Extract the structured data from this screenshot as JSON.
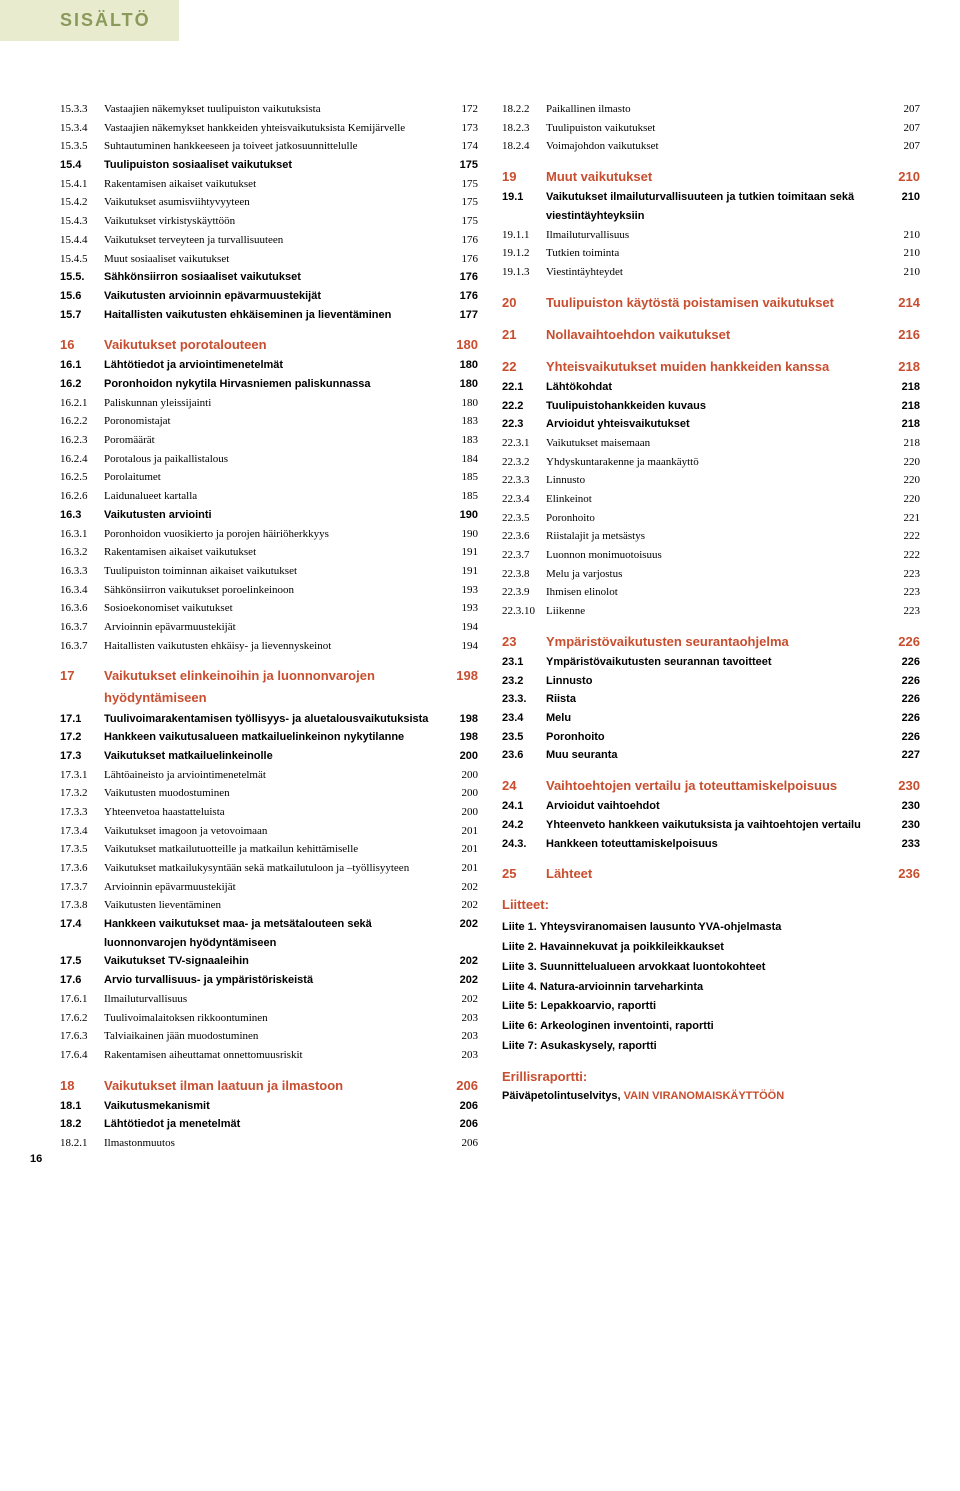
{
  "header": "SISÄLTÖ",
  "pageNumber": "16",
  "colors": {
    "headerBg": "#e8ebce",
    "headerText": "#8a9a5b",
    "sectionHead": "#c84e2f",
    "bodyText": "#000000",
    "background": "#ffffff"
  },
  "leftColumn": [
    {
      "num": "15.3.3",
      "label": "Vastaajien näkemykset tuulipuiston vaikutuksista",
      "page": "172",
      "style": "normal"
    },
    {
      "num": "15.3.4",
      "label": "Vastaajien näkemykset hankkeiden yhteisvaikutuksista Kemijärvelle",
      "page": "173",
      "style": "normal"
    },
    {
      "num": "15.3.5",
      "label": "Suhtautuminen hankkeeseen ja toiveet jatkosuunnittelulle",
      "page": "174",
      "style": "normal"
    },
    {
      "num": "15.4",
      "label": "Tuulipuiston sosiaaliset vaikutukset",
      "page": "175",
      "style": "bold"
    },
    {
      "num": "15.4.1",
      "label": "Rakentamisen aikaiset vaikutukset",
      "page": "175",
      "style": "normal"
    },
    {
      "num": "15.4.2",
      "label": "Vaikutukset asumisviihtyvyyteen",
      "page": "175",
      "style": "normal"
    },
    {
      "num": "15.4.3",
      "label": "Vaikutukset virkistyskäyttöön",
      "page": "175",
      "style": "normal"
    },
    {
      "num": "15.4.4",
      "label": "Vaikutukset terveyteen ja turvallisuuteen",
      "page": "176",
      "style": "normal"
    },
    {
      "num": "15.4.5",
      "label": "Muut sosiaaliset vaikutukset",
      "page": "176",
      "style": "normal"
    },
    {
      "num": "15.5.",
      "label": "Sähkönsiirron sosiaaliset vaikutukset",
      "page": "176",
      "style": "bold"
    },
    {
      "num": "15.6",
      "label": "Vaikutusten arvioinnin epävarmuustekijät",
      "page": "176",
      "style": "bold"
    },
    {
      "num": "15.7",
      "label": "Haitallisten vaikutusten ehkäiseminen ja lieventäminen",
      "page": "177",
      "style": "bold"
    },
    {
      "style": "spacer"
    },
    {
      "num": "16",
      "label": "Vaikutukset porotalouteen",
      "page": "180",
      "style": "section"
    },
    {
      "num": "16.1",
      "label": "Lähtötiedot ja arviointimenetelmät",
      "page": "180",
      "style": "bold"
    },
    {
      "num": "16.2",
      "label": "Poronhoidon nykytila Hirvasniemen paliskunnassa",
      "page": "180",
      "style": "bold"
    },
    {
      "num": "16.2.1",
      "label": "Paliskunnan yleissijainti",
      "page": "180",
      "style": "normal"
    },
    {
      "num": "16.2.2",
      "label": "Poronomistajat",
      "page": "183",
      "style": "normal"
    },
    {
      "num": "16.2.3",
      "label": "Poromäärät",
      "page": "183",
      "style": "normal"
    },
    {
      "num": "16.2.4",
      "label": "Porotalous ja paikallistalous",
      "page": "184",
      "style": "normal"
    },
    {
      "num": "16.2.5",
      "label": "Porolaitumet",
      "page": "185",
      "style": "normal"
    },
    {
      "num": "16.2.6",
      "label": "Laidunalueet kartalla",
      "page": "185",
      "style": "normal"
    },
    {
      "num": "16.3",
      "label": "Vaikutusten arviointi",
      "page": "190",
      "style": "bold"
    },
    {
      "num": "16.3.1",
      "label": "Poronhoidon vuosikierto ja porojen häiriöherkkyys",
      "page": "190",
      "style": "normal"
    },
    {
      "num": "16.3.2",
      "label": "Rakentamisen aikaiset vaikutukset",
      "page": "191",
      "style": "normal"
    },
    {
      "num": "16.3.3",
      "label": "Tuulipuiston toiminnan aikaiset vaikutukset",
      "page": "191",
      "style": "normal"
    },
    {
      "num": "16.3.4",
      "label": "Sähkönsiirron vaikutukset poroelinkeinoon",
      "page": "193",
      "style": "normal"
    },
    {
      "num": "16.3.6",
      "label": "Sosioekonomiset vaikutukset",
      "page": "193",
      "style": "normal"
    },
    {
      "num": "16.3.7",
      "label": "Arvioinnin epävarmuustekijät",
      "page": "194",
      "style": "normal"
    },
    {
      "num": "16.3.7",
      "label": "Haitallisten vaikutusten ehkäisy- ja lievennyskeinot",
      "page": "194",
      "style": "normal"
    },
    {
      "style": "spacer"
    },
    {
      "num": "17",
      "label": "Vaikutukset elinkeinoihin ja luonnonvarojen hyödyntämiseen",
      "page": "198",
      "style": "section"
    },
    {
      "num": "17.1",
      "label": "Tuulivoimarakentamisen työllisyys- ja aluetalousvaikutuksista",
      "page": "198",
      "style": "bold"
    },
    {
      "num": "17.2",
      "label": "Hankkeen vaikutusalueen matkailuelinkeinon nykytilanne",
      "page": "198",
      "style": "bold"
    },
    {
      "num": "17.3",
      "label": "Vaikutukset matkailuelinkeinolle",
      "page": "200",
      "style": "bold"
    },
    {
      "num": "17.3.1",
      "label": "Lähtöaineisto ja arviointimenetelmät",
      "page": "200",
      "style": "normal"
    },
    {
      "num": "17.3.2",
      "label": "Vaikutusten muodostuminen",
      "page": "200",
      "style": "normal"
    },
    {
      "num": "17.3.3",
      "label": "Yhteenvetoa haastatteluista",
      "page": "200",
      "style": "normal"
    },
    {
      "num": "17.3.4",
      "label": "Vaikutukset imagoon ja vetovoimaan",
      "page": "201",
      "style": "normal"
    },
    {
      "num": "17.3.5",
      "label": "Vaikutukset matkailutuotteille ja matkailun kehittämiselle",
      "page": "201",
      "style": "normal"
    },
    {
      "num": "17.3.6",
      "label": "Vaikutukset matkailukysyntään sekä matkailutuloon ja –työllisyyteen",
      "page": "201",
      "style": "normal"
    },
    {
      "num": "17.3.7",
      "label": "Arvioinnin epävarmuustekijät",
      "page": "202",
      "style": "normal"
    },
    {
      "num": "17.3.8",
      "label": "Vaikutusten lieventäminen",
      "page": "202",
      "style": "normal"
    },
    {
      "num": "17.4",
      "label": "Hankkeen vaikutukset maa- ja metsätalouteen sekä luonnonvarojen hyödyntämiseen",
      "page": "202",
      "style": "bold"
    },
    {
      "num": "17.5",
      "label": "Vaikutukset TV-signaaleihin",
      "page": "202",
      "style": "bold"
    },
    {
      "num": "17.6",
      "label": "Arvio turvallisuus- ja ympäristöriskeistä",
      "page": "202",
      "style": "bold"
    },
    {
      "num": "17.6.1",
      "label": "Ilmailuturvallisuus",
      "page": "202",
      "style": "normal"
    },
    {
      "num": "17.6.2",
      "label": "Tuulivoimalaitoksen rikkoontuminen",
      "page": "203",
      "style": "normal"
    },
    {
      "num": "17.6.3",
      "label": "Talviaikainen jään muodostuminen",
      "page": "203",
      "style": "normal"
    },
    {
      "num": "17.6.4",
      "label": "Rakentamisen aiheuttamat onnettomuusriskit",
      "page": "203",
      "style": "normal"
    },
    {
      "style": "spacer"
    },
    {
      "num": "18",
      "label": "Vaikutukset ilman laatuun ja ilmastoon",
      "page": "206",
      "style": "section"
    },
    {
      "num": "18.1",
      "label": "Vaikutusmekanismit",
      "page": "206",
      "style": "bold"
    },
    {
      "num": "18.2",
      "label": "Lähtötiedot ja menetelmät",
      "page": "206",
      "style": "bold"
    },
    {
      "num": "18.2.1",
      "label": "Ilmastonmuutos",
      "page": "206",
      "style": "normal"
    }
  ],
  "rightColumn": [
    {
      "num": "18.2.2",
      "label": "Paikallinen ilmasto",
      "page": "207",
      "style": "normal"
    },
    {
      "num": "18.2.3",
      "label": "Tuulipuiston vaikutukset",
      "page": "207",
      "style": "normal"
    },
    {
      "num": "18.2.4",
      "label": "Voimajohdon vaikutukset",
      "page": "207",
      "style": "normal"
    },
    {
      "style": "spacer"
    },
    {
      "num": "19",
      "label": "Muut vaikutukset",
      "page": "210",
      "style": "section"
    },
    {
      "num": "19.1",
      "label": "Vaikutukset ilmailuturvallisuuteen ja tutkien toimitaan sekä viestintäyhteyksiin",
      "page": "210",
      "style": "bold"
    },
    {
      "num": "19.1.1",
      "label": "Ilmailuturvallisuus",
      "page": "210",
      "style": "normal"
    },
    {
      "num": "19.1.2",
      "label": "Tutkien toiminta",
      "page": "210",
      "style": "normal"
    },
    {
      "num": "19.1.3",
      "label": "Viestintäyhteydet",
      "page": "210",
      "style": "normal"
    },
    {
      "style": "spacer"
    },
    {
      "num": "20",
      "label": "Tuulipuiston käytöstä poistamisen vaikutukset",
      "page": "214",
      "style": "section"
    },
    {
      "style": "spacer"
    },
    {
      "num": "21",
      "label": "Nollavaihtoehdon vaikutukset",
      "page": "216",
      "style": "section"
    },
    {
      "style": "spacer"
    },
    {
      "num": "22",
      "label": "Yhteisvaikutukset muiden hankkeiden kanssa",
      "page": "218",
      "style": "section"
    },
    {
      "num": "22.1",
      "label": "Lähtökohdat",
      "page": "218",
      "style": "bold"
    },
    {
      "num": "22.2",
      "label": "Tuulipuistohankkeiden kuvaus",
      "page": "218",
      "style": "bold"
    },
    {
      "num": "22.3",
      "label": "Arvioidut yhteisvaikutukset",
      "page": "218",
      "style": "bold"
    },
    {
      "num": "22.3.1",
      "label": "Vaikutukset maisemaan",
      "page": "218",
      "style": "normal"
    },
    {
      "num": "22.3.2",
      "label": "Yhdyskuntarakenne ja maankäyttö",
      "page": "220",
      "style": "normal"
    },
    {
      "num": "22.3.3",
      "label": "Linnusto",
      "page": "220",
      "style": "normal"
    },
    {
      "num": "22.3.4",
      "label": "Elinkeinot",
      "page": "220",
      "style": "normal"
    },
    {
      "num": "22.3.5",
      "label": "Poronhoito",
      "page": "221",
      "style": "normal"
    },
    {
      "num": "22.3.6",
      "label": "Riistalajit ja metsästys",
      "page": "222",
      "style": "normal"
    },
    {
      "num": "22.3.7",
      "label": "Luonnon monimuotoisuus",
      "page": "222",
      "style": "normal"
    },
    {
      "num": "22.3.8",
      "label": "Melu ja varjostus",
      "page": "223",
      "style": "normal"
    },
    {
      "num": "22.3.9",
      "label": "Ihmisen elinolot",
      "page": "223",
      "style": "normal"
    },
    {
      "num": "22.3.10",
      "label": "Liikenne",
      "page": "223",
      "style": "normal"
    },
    {
      "style": "spacer"
    },
    {
      "num": "23",
      "label": "Ympäristövaikutusten seurantaohjelma",
      "page": "226",
      "style": "section"
    },
    {
      "num": "23.1",
      "label": "Ympäristövaikutusten seurannan tavoitteet",
      "page": "226",
      "style": "bold"
    },
    {
      "num": "23.2",
      "label": "Linnusto",
      "page": "226",
      "style": "bold"
    },
    {
      "num": "23.3.",
      "label": "Riista",
      "page": "226",
      "style": "bold"
    },
    {
      "num": "23.4",
      "label": "Melu",
      "page": "226",
      "style": "bold"
    },
    {
      "num": "23.5",
      "label": "Poronhoito",
      "page": "226",
      "style": "bold"
    },
    {
      "num": "23.6",
      "label": "Muu seuranta",
      "page": "227",
      "style": "bold"
    },
    {
      "style": "spacer"
    },
    {
      "num": "24",
      "label": "Vaihtoehtojen vertailu ja toteuttamiskelpoisuus",
      "page": "230",
      "style": "section"
    },
    {
      "num": "24.1",
      "label": "Arvioidut vaihtoehdot",
      "page": "230",
      "style": "bold"
    },
    {
      "num": "24.2",
      "label": "Yhteenveto hankkeen vaikutuksista ja vaihtoehtojen vertailu",
      "page": "230",
      "style": "bold"
    },
    {
      "num": "24.3.",
      "label": "Hankkeen toteuttamiskelpoisuus",
      "page": "233",
      "style": "bold"
    },
    {
      "style": "spacer"
    },
    {
      "num": "25",
      "label": "Lähteet",
      "page": "236",
      "style": "section-short"
    }
  ],
  "liitteet": {
    "title": "Liitteet:",
    "items": [
      "Liite 1. Yhteysviranomaisen lausunto YVA-ohjelmasta",
      "Liite 2. Havainnekuvat ja poikkileikkaukset",
      "Liite 3. Suunnittelualueen arvokkaat luontokohteet",
      "Liite 4. Natura-arvioinnin tarveharkinta",
      "Liite 5: Lepakkoarvio, raportti",
      "Liite 6: Arkeologinen inventointi, raportti",
      "Liite 7: Asukaskysely, raportti"
    ]
  },
  "erillisraportti": {
    "title": "Erillisraportti:",
    "text": "Päiväpetolintuselvitys, ",
    "highlight": "VAIN VIRANOMAISKÄYTTÖÖN"
  }
}
